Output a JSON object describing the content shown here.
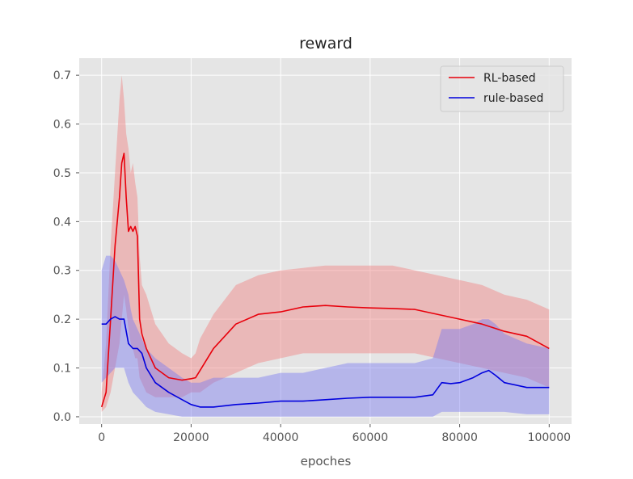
{
  "chart_data": {
    "type": "line",
    "title": "reward",
    "xlabel": "epoches",
    "ylabel": "",
    "xlim": [
      -5000,
      105000
    ],
    "ylim": [
      -0.015,
      0.735
    ],
    "xticks": [
      0,
      20000,
      40000,
      60000,
      80000,
      100000
    ],
    "xtick_labels": [
      "0",
      "20000",
      "40000",
      "60000",
      "80000",
      "100000"
    ],
    "yticks": [
      0.0,
      0.1,
      0.2,
      0.3,
      0.4,
      0.5,
      0.6,
      0.7
    ],
    "ytick_labels": [
      "0.0",
      "0.1",
      "0.2",
      "0.3",
      "0.4",
      "0.5",
      "0.6",
      "0.7"
    ],
    "grid": true,
    "legend_position": "top-right",
    "colors": {
      "background": "#e5e5e5",
      "grid": "#ffffff",
      "text": "#555555",
      "title": "#222222"
    },
    "series": [
      {
        "name": "RL-based",
        "color": "#e8000b",
        "band_color": "#f08080",
        "x": [
          0,
          1000,
          2000,
          3000,
          4000,
          4500,
          5000,
          5500,
          6000,
          6500,
          7000,
          7500,
          8000,
          8500,
          9000,
          10000,
          12000,
          15000,
          18000,
          20000,
          21000,
          22000,
          25000,
          30000,
          35000,
          40000,
          45000,
          50000,
          55000,
          60000,
          65000,
          70000,
          75000,
          80000,
          85000,
          90000,
          95000,
          100000
        ],
        "values": [
          0.02,
          0.05,
          0.2,
          0.35,
          0.45,
          0.52,
          0.54,
          0.45,
          0.38,
          0.39,
          0.38,
          0.39,
          0.37,
          0.2,
          0.17,
          0.14,
          0.1,
          0.08,
          0.075,
          0.078,
          0.08,
          0.095,
          0.14,
          0.19,
          0.21,
          0.215,
          0.225,
          0.228,
          0.225,
          0.223,
          0.222,
          0.22,
          0.21,
          0.2,
          0.19,
          0.175,
          0.165,
          0.14
        ],
        "upper": [
          0.05,
          0.15,
          0.35,
          0.5,
          0.65,
          0.7,
          0.65,
          0.58,
          0.55,
          0.5,
          0.52,
          0.48,
          0.45,
          0.33,
          0.27,
          0.25,
          0.19,
          0.15,
          0.13,
          0.12,
          0.13,
          0.16,
          0.21,
          0.27,
          0.29,
          0.3,
          0.305,
          0.31,
          0.31,
          0.31,
          0.31,
          0.3,
          0.29,
          0.28,
          0.27,
          0.25,
          0.24,
          0.22
        ],
        "lower": [
          0.01,
          0.02,
          0.05,
          0.1,
          0.15,
          0.2,
          0.25,
          0.22,
          0.18,
          0.15,
          0.14,
          0.12,
          0.12,
          0.08,
          0.07,
          0.05,
          0.04,
          0.04,
          0.04,
          0.05,
          0.05,
          0.05,
          0.07,
          0.09,
          0.11,
          0.12,
          0.13,
          0.13,
          0.13,
          0.13,
          0.13,
          0.13,
          0.12,
          0.11,
          0.1,
          0.09,
          0.08,
          0.06
        ]
      },
      {
        "name": "rule-based",
        "color": "#0000dd",
        "band_color": "#7b7bf0",
        "x": [
          0,
          1000,
          2000,
          3000,
          4000,
          5000,
          6000,
          6500,
          7000,
          8000,
          9000,
          10000,
          12000,
          15000,
          18000,
          20000,
          22000,
          25000,
          30000,
          35000,
          40000,
          45000,
          50000,
          55000,
          60000,
          65000,
          70000,
          74000,
          76000,
          78000,
          80000,
          83000,
          85000,
          86500,
          88000,
          90000,
          95000,
          100000
        ],
        "values": [
          0.19,
          0.19,
          0.2,
          0.205,
          0.2,
          0.2,
          0.15,
          0.145,
          0.14,
          0.14,
          0.13,
          0.1,
          0.07,
          0.05,
          0.035,
          0.025,
          0.02,
          0.02,
          0.025,
          0.028,
          0.032,
          0.032,
          0.035,
          0.038,
          0.04,
          0.04,
          0.04,
          0.045,
          0.07,
          0.068,
          0.07,
          0.08,
          0.09,
          0.095,
          0.085,
          0.07,
          0.06,
          0.06
        ],
        "upper": [
          0.3,
          0.33,
          0.33,
          0.32,
          0.3,
          0.28,
          0.25,
          0.22,
          0.2,
          0.18,
          0.16,
          0.14,
          0.12,
          0.1,
          0.08,
          0.07,
          0.07,
          0.08,
          0.08,
          0.08,
          0.09,
          0.09,
          0.1,
          0.11,
          0.11,
          0.11,
          0.11,
          0.12,
          0.18,
          0.18,
          0.18,
          0.19,
          0.2,
          0.2,
          0.19,
          0.17,
          0.15,
          0.14
        ],
        "lower": [
          0.07,
          0.08,
          0.09,
          0.1,
          0.1,
          0.1,
          0.07,
          0.06,
          0.05,
          0.04,
          0.03,
          0.02,
          0.01,
          0.005,
          0,
          0,
          0,
          0,
          0,
          0,
          0,
          0,
          0,
          0,
          0,
          0,
          0,
          0,
          0.01,
          0.01,
          0.01,
          0.01,
          0.01,
          0.01,
          0.01,
          0.01,
          0.005,
          0.005
        ]
      }
    ]
  }
}
